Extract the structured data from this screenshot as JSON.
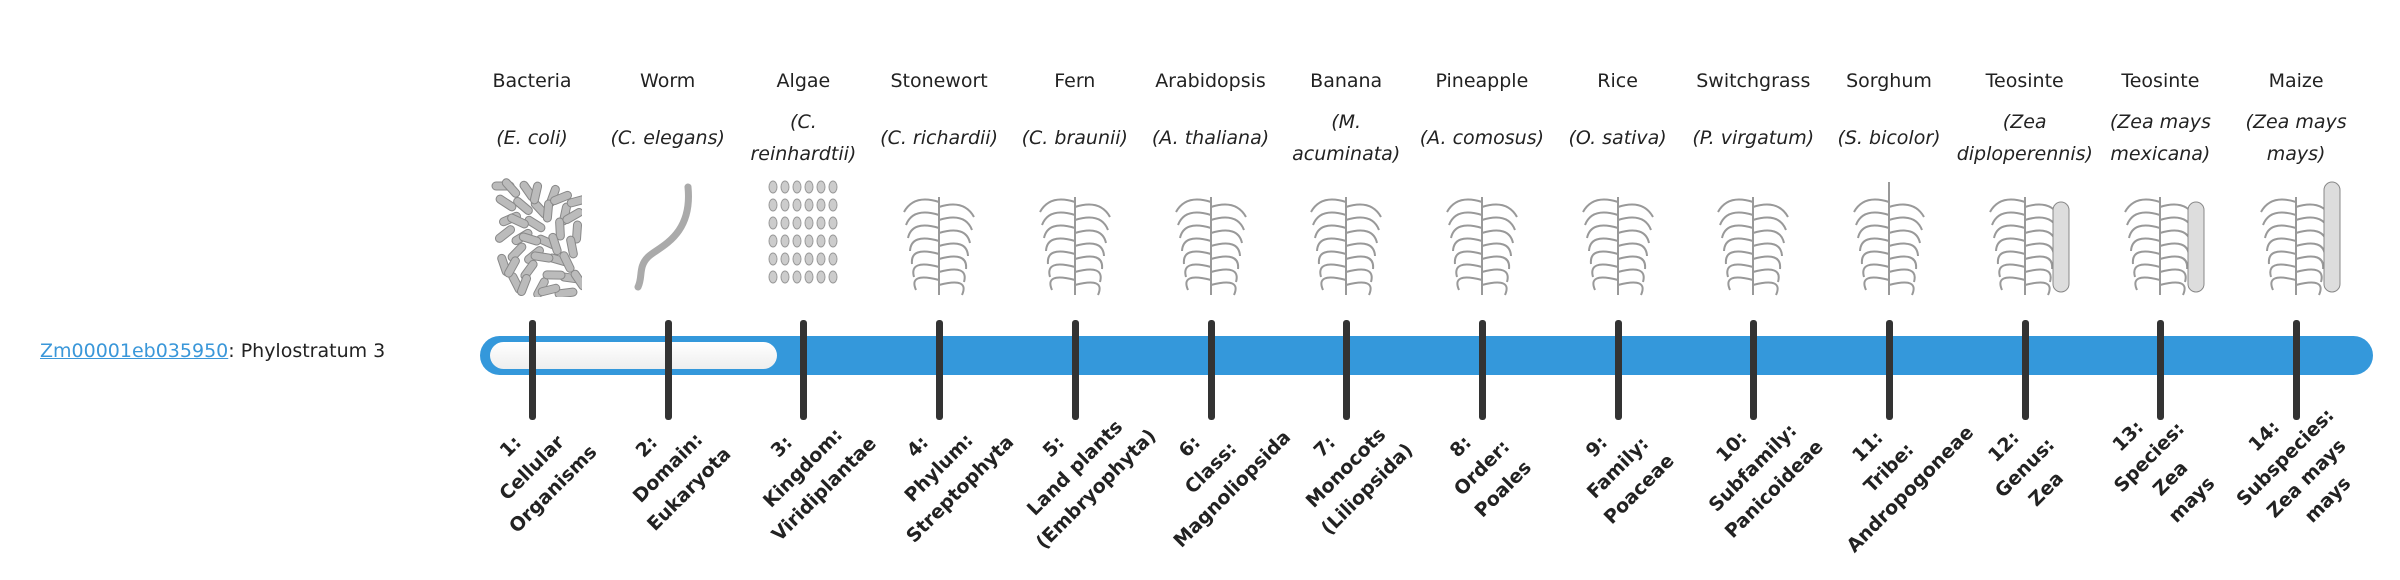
{
  "gene": {
    "id": "Zm00001eb035950",
    "suffix": ": Phylostratum 3"
  },
  "phylostratum": 3,
  "colors": {
    "bar": "#3498db",
    "link": "#3a97d9",
    "tick": "#333333",
    "unfilled": "#f2f2f2"
  },
  "organisms": [
    {
      "common": "Bacteria",
      "latin": "(E. coli)",
      "icon": "bacteria-icon",
      "rank": [
        "1:",
        "Cellular",
        "Organisms"
      ]
    },
    {
      "common": "Worm",
      "latin": "(C. elegans)",
      "icon": "worm-icon",
      "rank": [
        "2:",
        "Domain:",
        "Eukaryota"
      ]
    },
    {
      "common": "Algae",
      "latin": "(C. reinhardtii)",
      "icon": "algae-icon",
      "rank": [
        "3:",
        "Kingdom:",
        "Viridiplantae"
      ]
    },
    {
      "common": "Stonewort",
      "latin": "(C. richardii)",
      "icon": "stonewort-icon",
      "rank": [
        "4:",
        "Phylum:",
        "Streptophyta"
      ]
    },
    {
      "common": "Fern",
      "latin": "(C. braunii)",
      "icon": "fern-icon",
      "rank": [
        "5:",
        "Land plants",
        "(Embryophyta)"
      ]
    },
    {
      "common": "Arabidopsis",
      "latin": "(A. thaliana)",
      "icon": "arabidopsis-icon",
      "rank": [
        "6:",
        "Class:",
        "Magnoliopsida"
      ]
    },
    {
      "common": "Banana",
      "latin": "(M. acuminata)",
      "icon": "banana-icon",
      "rank": [
        "7:",
        "Monocots",
        "(Liliopsida)"
      ]
    },
    {
      "common": "Pineapple",
      "latin": "(A. comosus)",
      "icon": "pineapple-icon",
      "rank": [
        "8:",
        "Order:",
        "Poales"
      ]
    },
    {
      "common": "Rice",
      "latin": "(O. sativa)",
      "icon": "rice-icon",
      "rank": [
        "9:",
        "Family:",
        "Poaceae"
      ]
    },
    {
      "common": "Switchgrass",
      "latin": "(P. virgatum)",
      "icon": "switchgrass-icon",
      "rank": [
        "10:",
        "Subfamily:",
        "Panicoideae"
      ]
    },
    {
      "common": "Sorghum",
      "latin": "(S. bicolor)",
      "icon": "sorghum-icon",
      "rank": [
        "11:",
        "Tribe:",
        "Andropogoneae"
      ]
    },
    {
      "common": "Teosinte",
      "latin": "(Zea diploperennis)",
      "icon": "teosinte-icon",
      "rank": [
        "12:",
        "Genus:",
        "Zea"
      ]
    },
    {
      "common": "Teosinte",
      "latin": "(Zea mays mexicana)",
      "icon": "teosinte-mexicana-icon",
      "rank": [
        "13:",
        "Species:",
        "Zea",
        "mays"
      ]
    },
    {
      "common": "Maize",
      "latin": "(Zea mays mays)",
      "icon": "maize-icon",
      "rank": [
        "14:",
        "Subspecies:",
        "Zea mays",
        "mays"
      ]
    }
  ]
}
